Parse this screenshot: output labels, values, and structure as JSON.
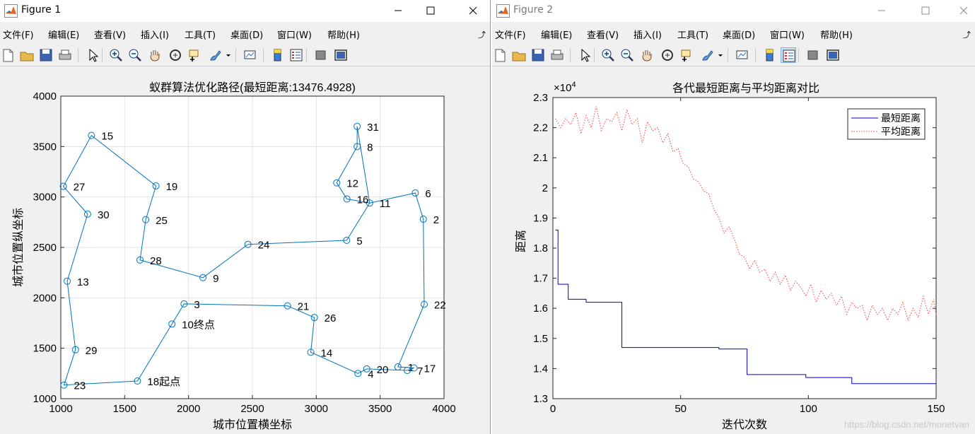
{
  "windows": [
    {
      "title": "Figure 1",
      "menus": [
        "文件(F)",
        "编辑(E)",
        "查看(V)",
        "插入(I)",
        "工具(T)",
        "桌面(D)",
        "窗口(W)",
        "帮助(H)"
      ]
    },
    {
      "title": "Figure 2",
      "menus": [
        "文件(F)",
        "编辑(E)",
        "查看(V)",
        "插入(I)",
        "工具(T)",
        "桌面(D)",
        "窗口(W)",
        "帮助(H)"
      ]
    }
  ],
  "toolbar_icons": [
    "new-figure-icon",
    "open-file-icon",
    "save-icon",
    "print-icon",
    "pointer-icon",
    "zoom-in-icon",
    "zoom-out-icon",
    "pan-icon",
    "rotate-icon",
    "data-cursor-icon",
    "brush-icon",
    "link-plot-icon",
    "colorbar-icon",
    "legend-icon",
    "hide-plot-tools-icon",
    "show-plot-tools-icon"
  ],
  "watermark": "https://blog.csdn.net/monetvan",
  "colors": {
    "route": "#0072bd",
    "shortest": "#0000cd",
    "average": "#ff4040"
  },
  "chart_data": [
    {
      "type": "line",
      "title": "蚁群算法优化路径(最短距离:13476.4928)",
      "xlabel": "城市位置横坐标",
      "ylabel": "城市位置纵坐标",
      "xlim": [
        1000,
        4000
      ],
      "ylim": [
        1000,
        4000
      ],
      "xticks": [
        "1000",
        "1500",
        "2000",
        "2500",
        "3000",
        "3500",
        "4000"
      ],
      "yticks": [
        "1000",
        "1500",
        "2000",
        "2500",
        "3000",
        "3500",
        "4000"
      ],
      "grid": true,
      "cities": [
        {
          "id": "1",
          "x": 3639,
          "y": 1315
        },
        {
          "id": "2",
          "x": 3838,
          "y": 2780
        },
        {
          "id": "3",
          "x": 1965,
          "y": 1940
        },
        {
          "id": "4",
          "x": 3326,
          "y": 1250
        },
        {
          "id": "5",
          "x": 3238,
          "y": 2570
        },
        {
          "id": "6",
          "x": 3775,
          "y": 3040
        },
        {
          "id": "7",
          "x": 3712,
          "y": 1280
        },
        {
          "id": "8",
          "x": 3320,
          "y": 3500
        },
        {
          "id": "9",
          "x": 2113,
          "y": 2200
        },
        {
          "id": "10",
          "x": 1870,
          "y": 1740
        },
        {
          "id": "11",
          "x": 3418,
          "y": 2940
        },
        {
          "id": "12",
          "x": 3160,
          "y": 3140
        },
        {
          "id": "13",
          "x": 1050,
          "y": 2165
        },
        {
          "id": "14",
          "x": 2957,
          "y": 1460
        },
        {
          "id": "15",
          "x": 1240,
          "y": 3610
        },
        {
          "id": "16",
          "x": 3240,
          "y": 2980
        },
        {
          "id": "17",
          "x": 3765,
          "y": 1305
        },
        {
          "id": "18",
          "x": 1600,
          "y": 1175
        },
        {
          "id": "19",
          "x": 1745,
          "y": 3110
        },
        {
          "id": "20",
          "x": 3395,
          "y": 1295
        },
        {
          "id": "21",
          "x": 2775,
          "y": 1920
        },
        {
          "id": "22",
          "x": 3845,
          "y": 1935
        },
        {
          "id": "23",
          "x": 1025,
          "y": 1135
        },
        {
          "id": "24",
          "x": 2465,
          "y": 2530
        },
        {
          "id": "25",
          "x": 1665,
          "y": 2775
        },
        {
          "id": "26",
          "x": 2985,
          "y": 1805
        },
        {
          "id": "27",
          "x": 1020,
          "y": 3105
        },
        {
          "id": "28",
          "x": 1620,
          "y": 2375
        },
        {
          "id": "29",
          "x": 1115,
          "y": 1485
        },
        {
          "id": "30",
          "x": 1210,
          "y": 2830
        },
        {
          "id": "31",
          "x": 3320,
          "y": 3700
        }
      ],
      "route": [
        "18",
        "10",
        "3",
        "21",
        "26",
        "14",
        "4",
        "20",
        "7",
        "17",
        "1",
        "22",
        "2",
        "6",
        "11",
        "16",
        "12",
        "8",
        "31",
        "11",
        "5",
        "24",
        "9",
        "28",
        "25",
        "19",
        "15",
        "27",
        "30",
        "13",
        "29",
        "23",
        "18"
      ],
      "annotations": [
        {
          "city": "18",
          "text": "18起点"
        },
        {
          "city": "10",
          "text": "10终点"
        }
      ]
    },
    {
      "type": "line",
      "title": "各代最短距离与平均距离对比",
      "xlabel": "迭代次数",
      "ylabel": "距离",
      "xlim": [
        0,
        150
      ],
      "ylim": [
        13000,
        23000
      ],
      "xticks": [
        "0",
        "50",
        "100",
        "150"
      ],
      "yticks": [
        "1.3",
        "1.4",
        "1.5",
        "1.6",
        "1.7",
        "1.8",
        "1.9",
        "2",
        "2.1",
        "2.2",
        "2.3"
      ],
      "y_exponent": "10",
      "y_exponent_power": "4",
      "grid": false,
      "legend": {
        "placement": "top-right"
      },
      "series": [
        {
          "name": "最短距离",
          "style": "solid",
          "x": [
            1,
            2,
            5,
            6,
            12,
            13,
            26,
            27,
            64,
            65,
            75,
            76,
            98,
            99,
            116,
            117,
            150
          ],
          "values": [
            18600,
            16800,
            16800,
            16300,
            16300,
            16200,
            16200,
            14700,
            14700,
            14650,
            14650,
            13800,
            13800,
            13700,
            13700,
            13500,
            13500
          ]
        },
        {
          "name": "平均距离",
          "style": "dotted",
          "x": [
            1,
            3,
            5,
            7,
            9,
            11,
            13,
            15,
            17,
            19,
            21,
            23,
            25,
            27,
            29,
            31,
            33,
            35,
            37,
            39,
            41,
            43,
            45,
            47,
            49,
            51,
            53,
            55,
            57,
            59,
            61,
            63,
            65,
            67,
            69,
            71,
            73,
            75,
            77,
            79,
            81,
            83,
            85,
            87,
            89,
            91,
            93,
            95,
            97,
            99,
            101,
            103,
            105,
            107,
            109,
            111,
            113,
            115,
            117,
            119,
            121,
            123,
            125,
            127,
            129,
            131,
            133,
            135,
            137,
            139,
            141,
            143,
            145,
            147,
            149,
            150
          ],
          "values": [
            22300,
            22000,
            22300,
            22100,
            22500,
            21800,
            22400,
            22000,
            22700,
            21900,
            22300,
            22200,
            22500,
            21900,
            22600,
            22100,
            22300,
            21500,
            22200,
            21900,
            22000,
            21500,
            21800,
            21200,
            21300,
            20800,
            20700,
            20300,
            20200,
            19900,
            19800,
            19300,
            19000,
            18500,
            18700,
            18300,
            17800,
            17700,
            17300,
            17600,
            17200,
            17300,
            16900,
            17200,
            16800,
            17100,
            16600,
            16900,
            16700,
            16400,
            16800,
            16200,
            16600,
            16300,
            16500,
            16100,
            16400,
            15800,
            16200,
            16000,
            16100,
            15600,
            16100,
            15800,
            16000,
            15600,
            16000,
            15800,
            16200,
            15600,
            16000,
            15700,
            16400,
            15800,
            16300,
            15800
          ]
        }
      ]
    }
  ]
}
